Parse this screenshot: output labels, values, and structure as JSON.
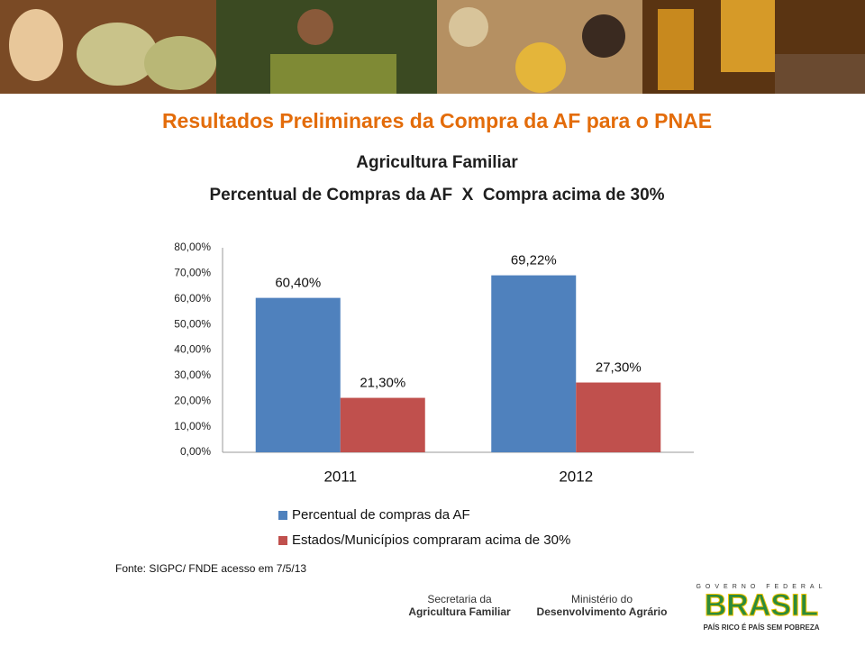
{
  "slide": {
    "title": "Resultados Preliminares da Compra da AF para o PNAE"
  },
  "chart_data": {
    "type": "bar",
    "title": "Agricultura Familiar",
    "subtitle": "Percentual de Compras da AF  X  Compra acima de 30%",
    "categories": [
      "2011",
      "2012"
    ],
    "series": [
      {
        "name": "Percentual de compras da AF",
        "color": "#4f81bd",
        "values": [
          60.4,
          69.22
        ],
        "value_labels": [
          "60,40%",
          "69,22%"
        ]
      },
      {
        "name": "Estados/Municípios compraram acima de 30%",
        "color": "#c0504d",
        "values": [
          21.3,
          27.3
        ],
        "value_labels": [
          "21,30%",
          "27,30%"
        ]
      }
    ],
    "ylim": [
      0,
      80
    ],
    "yticks": [
      {
        "value": 0,
        "label": "0,00%"
      },
      {
        "value": 10,
        "label": "10,00%"
      },
      {
        "value": 20,
        "label": "20,00%"
      },
      {
        "value": 30,
        "label": "30,00%"
      },
      {
        "value": 40,
        "label": "40,00%"
      },
      {
        "value": 50,
        "label": "50,00%"
      },
      {
        "value": 60,
        "label": "60,00%"
      },
      {
        "value": 70,
        "label": "70,00%"
      },
      {
        "value": 80,
        "label": "80,00%"
      }
    ],
    "grid": false,
    "legend": "bottom"
  },
  "source": "Fonte: SIGPC/ FNDE acesso em 7/5/13",
  "footer": {
    "secretaria_1": "Secretaria da",
    "secretaria_2": "Agricultura Familiar",
    "ministerio_1": "Ministério do",
    "ministerio_2": "Desenvolvimento Agrário",
    "governo": "GOVERNO FEDERAL",
    "brasil": "BRASIL",
    "slogan": "PAÍS RICO É PAÍS SEM POBREZA"
  }
}
